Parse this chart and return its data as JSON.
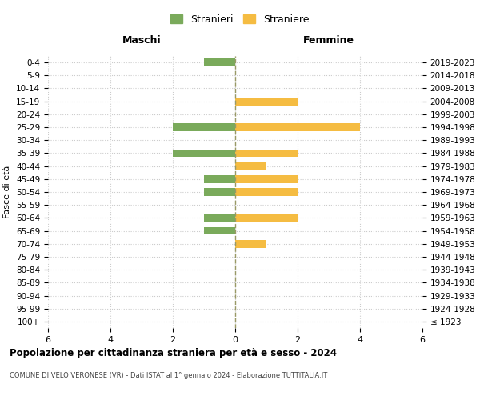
{
  "age_groups": [
    "100+",
    "95-99",
    "90-94",
    "85-89",
    "80-84",
    "75-79",
    "70-74",
    "65-69",
    "60-64",
    "55-59",
    "50-54",
    "45-49",
    "40-44",
    "35-39",
    "30-34",
    "25-29",
    "20-24",
    "15-19",
    "10-14",
    "5-9",
    "0-4"
  ],
  "birth_years": [
    "≤ 1923",
    "1924-1928",
    "1929-1933",
    "1934-1938",
    "1939-1943",
    "1944-1948",
    "1949-1953",
    "1954-1958",
    "1959-1963",
    "1964-1968",
    "1969-1973",
    "1974-1978",
    "1979-1983",
    "1984-1988",
    "1989-1993",
    "1994-1998",
    "1999-2003",
    "2004-2008",
    "2009-2013",
    "2014-2018",
    "2019-2023"
  ],
  "maschi": [
    0,
    0,
    0,
    0,
    0,
    0,
    0,
    1,
    1,
    0,
    1,
    1,
    0,
    2,
    0,
    2,
    0,
    0,
    0,
    0,
    1
  ],
  "femmine": [
    0,
    0,
    0,
    0,
    0,
    0,
    1,
    0,
    2,
    0,
    2,
    2,
    1,
    2,
    0,
    4,
    0,
    2,
    0,
    0,
    0
  ],
  "color_maschi": "#7aaa5b",
  "color_femmine": "#f5bc42",
  "title": "Popolazione per cittadinanza straniera per età e sesso - 2024",
  "subtitle": "COMUNE DI VELO VERONESE (VR) - Dati ISTAT al 1° gennaio 2024 - Elaborazione TUTTITALIA.IT",
  "xlabel_left": "Maschi",
  "xlabel_right": "Femmine",
  "ylabel_left": "Fasce di età",
  "legend_maschi": "Stranieri",
  "legend_femmine": "Straniere",
  "xlim": 6,
  "background_color": "#ffffff",
  "grid_color": "#cccccc",
  "dashed_line_color": "#999966"
}
